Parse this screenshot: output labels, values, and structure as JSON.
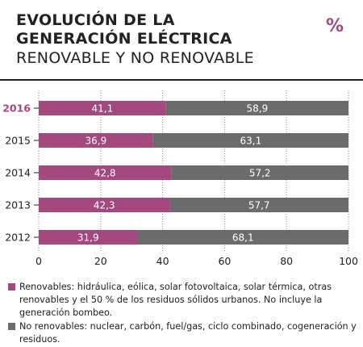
{
  "header": {
    "title_line1": "EVOLUCIÓN DE LA",
    "title_line2": "GENERACIÓN ELÉCTRICA",
    "subtitle": "RENOVABLE Y NO RENOVABLE",
    "unit": "%"
  },
  "colors": {
    "renewable": "#a3497f",
    "non_renewable": "#6b6b6b",
    "highlight": "#a3497f"
  },
  "legend": [
    {
      "label": "Renovables: hidráulica, eólica, solar fotovoltaica, solar térmica, otras renovables y el 50 % de los residuos sólidos urbanos. No incluye la generación bombeo.",
      "color": "#a3497f"
    },
    {
      "label": "No renovables: nuclear, carbón, fuel/gas, ciclo combinado, cogeneración y residuos.",
      "color": "#6b6b6b"
    }
  ],
  "chart_data": {
    "type": "bar",
    "orientation": "horizontal",
    "stacked": true,
    "categories": [
      "2016",
      "2015",
      "2014",
      "2013",
      "2012"
    ],
    "highlight_category": "2016",
    "series": [
      {
        "name": "Renovables",
        "values": [
          41.1,
          36.9,
          42.8,
          42.3,
          31.9
        ],
        "labels": [
          "41,1",
          "36,9",
          "42,8",
          "42,3",
          "31,9"
        ]
      },
      {
        "name": "No renovables",
        "values": [
          58.9,
          63.1,
          57.2,
          57.7,
          68.1
        ],
        "labels": [
          "58,9",
          "63,1",
          "57,2",
          "57,7",
          "68,1"
        ]
      }
    ],
    "xlim": [
      0,
      100
    ],
    "xticks": [
      "0",
      "20",
      "40",
      "60",
      "80",
      "100"
    ],
    "grid": true,
    "legend_position": "bottom"
  }
}
